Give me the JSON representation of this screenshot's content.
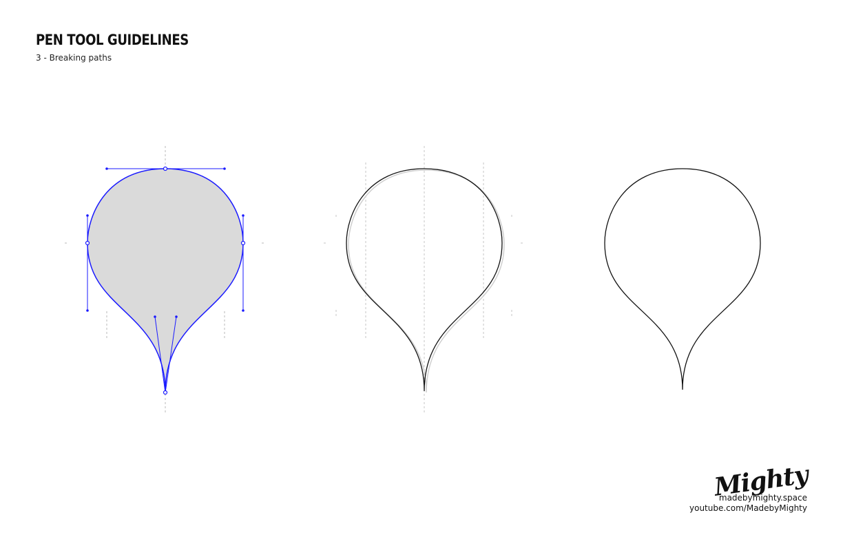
{
  "header": {
    "title": "PEN TOOL GUIDELINES",
    "subtitle": "3 - Breaking paths"
  },
  "branding": {
    "logo_text": "Mighty",
    "website": "madebymighty.space",
    "youtube": "youtube.com/MadebyMighty"
  },
  "colors": {
    "path_selected": "#1a1aff",
    "fill_selected": "#dadada",
    "path_stroke": "#111111",
    "guide": "#b8b8b8"
  }
}
